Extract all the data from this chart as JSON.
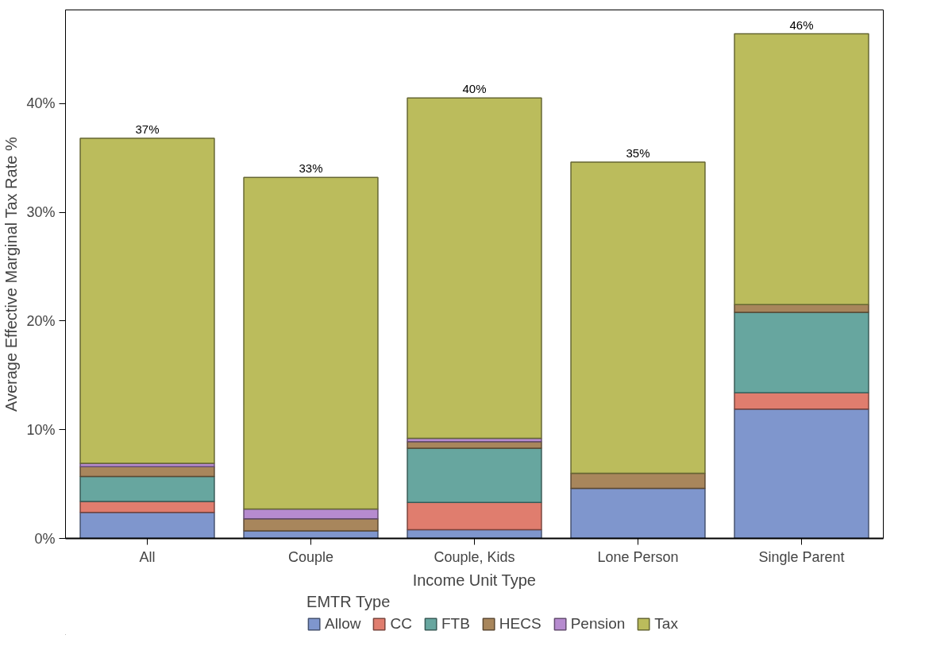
{
  "chart_data": {
    "type": "bar",
    "stacked": true,
    "xlabel": "Income Unit Type",
    "ylabel": "Average Effective Marginal Tax Rate %",
    "legend_title": "EMTR Type",
    "legend": "bottom",
    "grid": false,
    "categories": [
      "All",
      "Couple",
      "Couple, Kids",
      "Lone Person",
      "Single Parent"
    ],
    "ylim": [
      0,
      48.6
    ],
    "yticks": [
      {
        "value": 0,
        "label": "0%"
      },
      {
        "value": 10,
        "label": "10%"
      },
      {
        "value": 20,
        "label": "20%"
      },
      {
        "value": 30,
        "label": "30%"
      },
      {
        "value": 40,
        "label": "40%"
      }
    ],
    "totals": [
      "37%",
      "33%",
      "40%",
      "35%",
      "46%"
    ],
    "series": [
      {
        "name": "Allow",
        "color": "#7f96cd",
        "values": [
          2.4,
          0.7,
          0.8,
          4.6,
          11.9
        ]
      },
      {
        "name": "CC",
        "color": "#e07d6e",
        "values": [
          1.0,
          null,
          2.5,
          null,
          1.5
        ]
      },
      {
        "name": "FTB",
        "color": "#67a69f",
        "values": [
          2.3,
          null,
          5.0,
          null,
          7.4
        ]
      },
      {
        "name": "HECS",
        "color": "#a8865c",
        "values": [
          0.9,
          1.1,
          0.6,
          1.4,
          0.7
        ]
      },
      {
        "name": "Pension",
        "color": "#b68bcf",
        "values": [
          0.3,
          0.9,
          0.3,
          null,
          null
        ]
      },
      {
        "name": "Tax",
        "color": "#bbbc5c",
        "values": [
          29.9,
          30.5,
          31.3,
          28.6,
          24.9
        ]
      }
    ]
  }
}
